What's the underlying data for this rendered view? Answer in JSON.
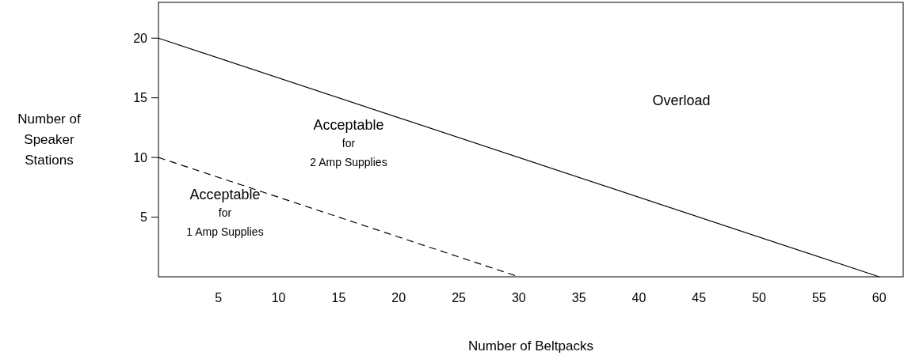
{
  "chart_data": {
    "type": "line",
    "xlabel": "Number of Beltpacks",
    "ylabel": "Number of\nSpeaker\nStations",
    "xlim": [
      0,
      62
    ],
    "ylim": [
      0,
      23
    ],
    "xticks": [
      5,
      10,
      15,
      20,
      25,
      30,
      35,
      40,
      45,
      50,
      55,
      60
    ],
    "yticks": [
      5,
      10,
      15,
      20
    ],
    "grid": false,
    "marker": "none",
    "series": [
      {
        "color": "#000000",
        "x": [
          0,
          60
        ],
        "values": [
          20,
          0
        ],
        "line_style": "solid"
      },
      {
        "color": "#000000",
        "x": [
          0,
          30
        ],
        "values": [
          10,
          0
        ],
        "line_style": "dashed"
      }
    ],
    "annotations": [
      "Overload",
      "Acceptable\nfor\n2 Amp Supplies",
      "Acceptable\nfor\n1 Amp Supplies"
    ]
  }
}
